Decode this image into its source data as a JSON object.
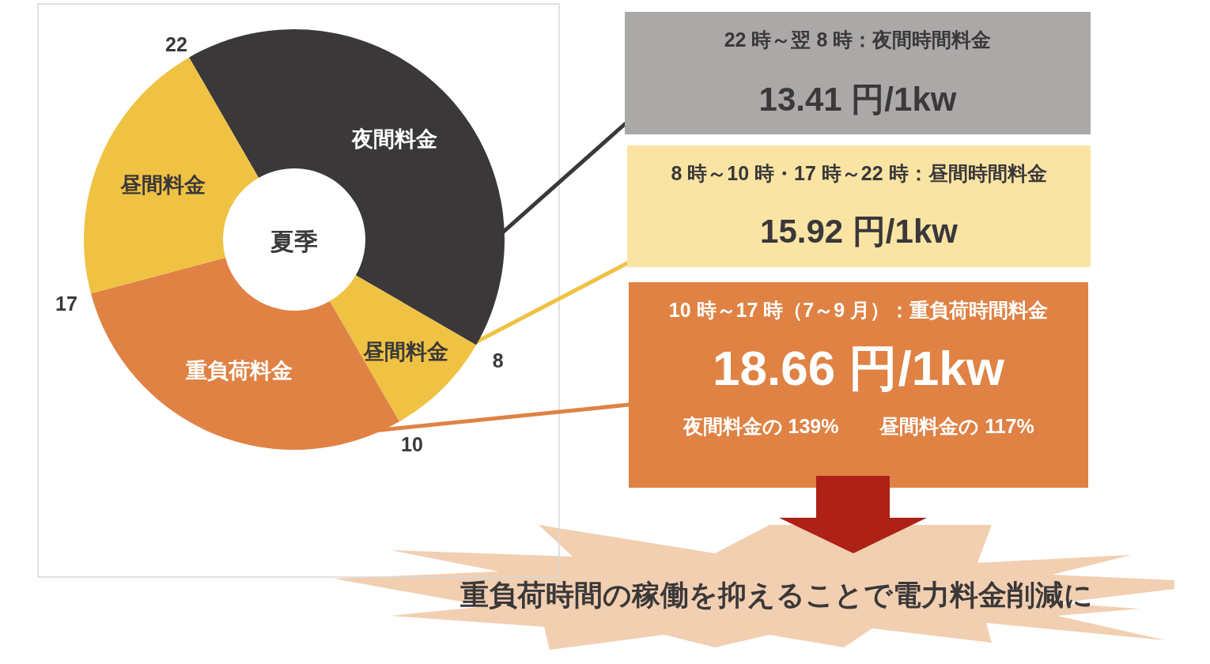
{
  "chart_data": [
    {
      "type": "donut",
      "title": "夏季",
      "categories": [
        "夜間料金",
        "昼間料金",
        "重負荷料金",
        "昼間料金"
      ],
      "values": [
        41.7,
        8.3,
        29.2,
        20.8
      ],
      "colors": [
        "#3a3839",
        "#f0c243",
        "#df8244",
        "#f0c243"
      ],
      "annotations": [
        "22",
        "8",
        "10",
        "17"
      ]
    },
    {
      "type": "other",
      "annotations": [
        "22 時～翌 8 時：夜間時間料金",
        "13.41 円/1kw",
        "8 時～10 時・17 時～22 時：昼間時間料金",
        "15.92 円/1kw",
        "10 時～17 時（7～9 月）：重負荷時間料金",
        "18.66 円/1kw",
        "夜間料金の 139%",
        "昼間料金の 117%",
        "重負荷時間の稼働を抑えることで電力料金削減に"
      ]
    }
  ]
}
